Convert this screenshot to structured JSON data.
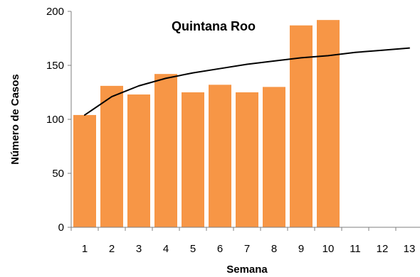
{
  "chart_data": {
    "type": "bar",
    "title": "Quintana Roo",
    "xlabel": "Semana",
    "ylabel": "Número de Casos",
    "categories": [
      "1",
      "2",
      "3",
      "4",
      "5",
      "6",
      "7",
      "8",
      "9",
      "10",
      "11",
      "12",
      "13"
    ],
    "values": [
      104,
      131,
      123,
      142,
      125,
      132,
      125,
      130,
      187,
      192,
      null,
      null,
      null
    ],
    "y_ticks": [
      0,
      50,
      100,
      150,
      200
    ],
    "ylim": [
      0,
      200
    ],
    "bar_color": "#F79646",
    "trendline": {
      "type": "logarithmic",
      "color": "#000000",
      "x": [
        1,
        2,
        3,
        4,
        5,
        6,
        7,
        8,
        9,
        10,
        11,
        12,
        13
      ],
      "y": [
        104,
        121,
        131,
        138,
        143,
        147,
        151,
        154,
        157,
        159,
        162,
        164,
        166
      ]
    },
    "grid": false,
    "legend": "none"
  }
}
